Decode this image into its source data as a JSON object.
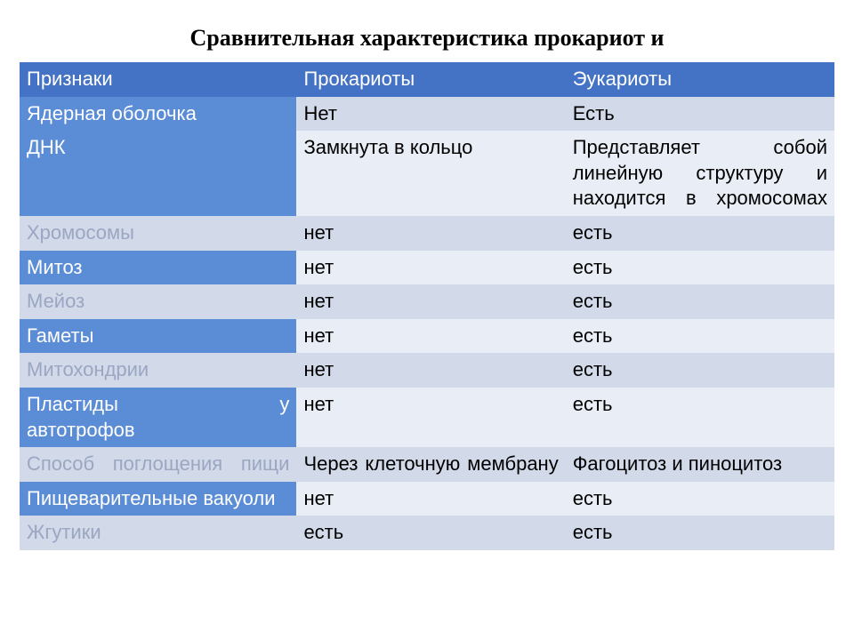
{
  "title": "Сравнительная характеристика прокариот и",
  "colors": {
    "header_bg": "#4472c4",
    "feature_bg": "#5b8cd6",
    "odd_bg": "#d2daea",
    "even_bg": "#e9edf5",
    "feature_text_muted": "#9aa6c2"
  },
  "header": [
    "Признаки",
    "Прокариоты",
    "Эукариоты"
  ],
  "rows": [
    {
      "feature": "Ядерная оболочка",
      "prok": "Нет",
      "euk": "Есть",
      "feature_style": "feat",
      "row_style": "odd"
    },
    {
      "feature": "ДНК",
      "prok": "Замкнута в кольцо",
      "euk": "Представляет собой линейную структуру и находится в хромосомах",
      "feature_style": "feat",
      "row_style": "even",
      "euk_justify": true
    },
    {
      "feature": "Хромосомы",
      "prok": "нет",
      "euk": "есть",
      "feature_style": "alt",
      "row_style": "odd"
    },
    {
      "feature": "Митоз",
      "prok": "нет",
      "euk": "есть",
      "feature_style": "feat",
      "row_style": "even"
    },
    {
      "feature": "Мейоз",
      "prok": "нет",
      "euk": "есть",
      "feature_style": "alt",
      "row_style": "odd"
    },
    {
      "feature": "Гаметы",
      "prok": "нет",
      "euk": "есть",
      "feature_style": "feat",
      "row_style": "even"
    },
    {
      "feature": "Митохондрии",
      "prok": "нет",
      "euk": "есть",
      "feature_style": "alt",
      "row_style": "odd"
    },
    {
      "feature": "Пластиды у автотрофов",
      "prok": "нет",
      "euk": "есть",
      "feature_style": "feat",
      "row_style": "even",
      "feature_plastid": true
    },
    {
      "feature": "Способ поглощения пищи",
      "prok": "Через клеточную мембрану",
      "euk": "Фагоцитоз и пиноцитоз",
      "feature_style": "alt",
      "row_style": "odd",
      "feature_justify": true,
      "prok_justify": true
    },
    {
      "feature": "Пищеварительные вакуоли",
      "prok": "нет",
      "euk": "есть",
      "feature_style": "feat",
      "row_style": "even"
    },
    {
      "feature": "Жгутики",
      "prok": "есть",
      "euk": "есть",
      "feature_style": "alt",
      "row_style": "odd"
    }
  ]
}
